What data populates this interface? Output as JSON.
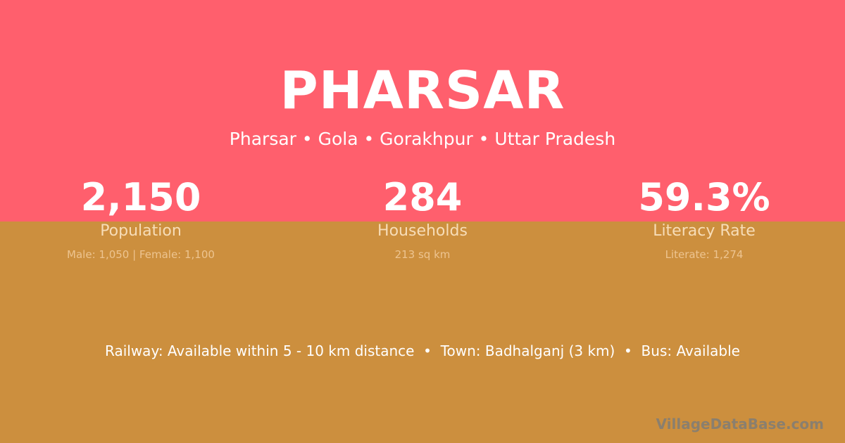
{
  "colors": {
    "top": "#FF5F6D",
    "bottom": "#CC8F3E"
  },
  "title": "PHARSAR",
  "breadcrumb": "Pharsar • Gola • Gorakhpur • Uttar Pradesh",
  "stats": [
    {
      "value": "2,150",
      "label": "Population",
      "detail": "Male: 1,050 | Female: 1,100"
    },
    {
      "value": "284",
      "label": "Households",
      "detail": "213 sq km"
    },
    {
      "value": "59.3%",
      "label": "Literacy Rate",
      "detail": "Literate: 1,274"
    }
  ],
  "info": "Railway: Available within 5 - 10 km distance  •  Town: Badhalganj (3 km)  •  Bus: Available",
  "watermark": "VillageDataBase.com"
}
